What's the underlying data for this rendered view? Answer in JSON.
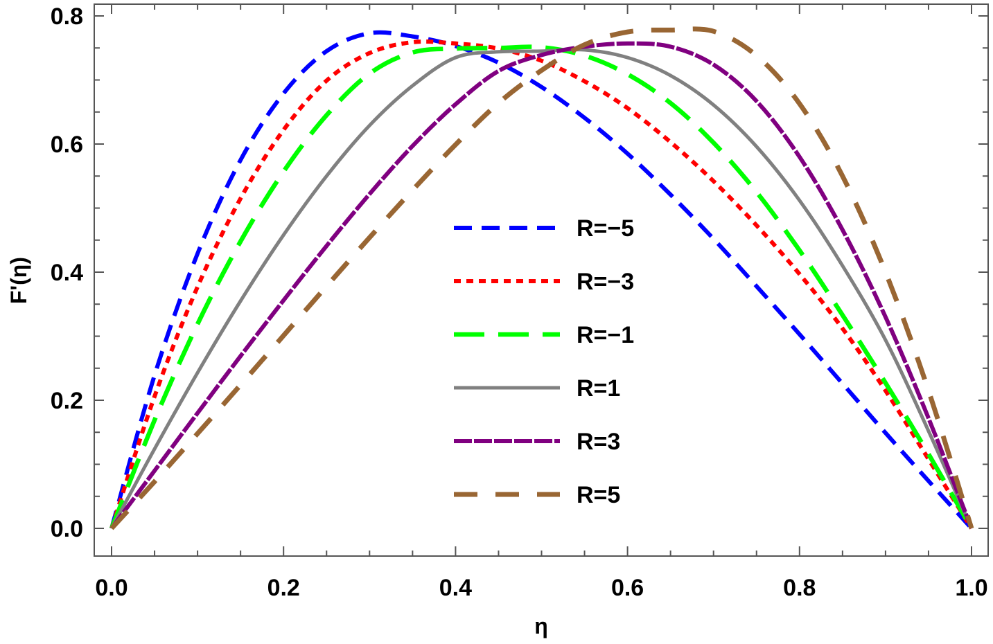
{
  "chart_data": {
    "type": "line",
    "title": "",
    "xlabel": "η",
    "ylabel": "F'(η)",
    "xlim": [
      0.0,
      1.0
    ],
    "ylim": [
      0.0,
      0.8
    ],
    "x_ticks": [
      "0.0",
      "0.2",
      "0.4",
      "0.6",
      "0.8",
      "1.0"
    ],
    "y_ticks": [
      "0.0",
      "0.2",
      "0.4",
      "0.6",
      "0.8"
    ],
    "grid": false,
    "legend_position": "center",
    "x": [
      0.0,
      0.05,
      0.1,
      0.15,
      0.2,
      0.25,
      0.3,
      0.35,
      0.4,
      0.45,
      0.5,
      0.55,
      0.6,
      0.65,
      0.7,
      0.75,
      0.8,
      0.85,
      0.9,
      0.95,
      1.0
    ],
    "series": [
      {
        "name": "R=−5",
        "color": "#0000ff",
        "style": "dashed",
        "values": [
          0.0,
          0.239,
          0.429,
          0.575,
          0.679,
          0.745,
          0.773,
          0.768,
          0.753,
          0.727,
          0.689,
          0.641,
          0.585,
          0.521,
          0.452,
          0.378,
          0.303,
          0.226,
          0.149,
          0.074,
          0.0
        ]
      },
      {
        "name": "R=−3",
        "color": "#ff0000",
        "style": "dotted",
        "values": [
          0.0,
          0.206,
          0.377,
          0.515,
          0.622,
          0.699,
          0.742,
          0.759,
          0.757,
          0.749,
          0.73,
          0.698,
          0.656,
          0.603,
          0.542,
          0.473,
          0.397,
          0.312,
          0.215,
          0.108,
          0.0
        ]
      },
      {
        "name": "R=−1",
        "color": "#00ff00",
        "style": "longdash",
        "values": [
          0.0,
          0.169,
          0.319,
          0.448,
          0.557,
          0.645,
          0.71,
          0.743,
          0.749,
          0.75,
          0.751,
          0.738,
          0.709,
          0.664,
          0.602,
          0.525,
          0.434,
          0.333,
          0.227,
          0.116,
          0.0
        ]
      },
      {
        "name": "R=1",
        "color": "#808080",
        "style": "solid",
        "values": [
          0.0,
          0.124,
          0.243,
          0.355,
          0.458,
          0.55,
          0.629,
          0.691,
          0.735,
          0.744,
          0.745,
          0.747,
          0.735,
          0.707,
          0.661,
          0.596,
          0.512,
          0.41,
          0.294,
          0.152,
          0.0
        ]
      },
      {
        "name": "R=3",
        "color": "#800080",
        "style": "dashdot",
        "values": [
          0.0,
          0.09,
          0.18,
          0.269,
          0.356,
          0.441,
          0.522,
          0.597,
          0.662,
          0.714,
          0.739,
          0.752,
          0.757,
          0.752,
          0.724,
          0.667,
          0.58,
          0.466,
          0.33,
          0.172,
          0.0
        ]
      },
      {
        "name": "R=5",
        "color": "#996633",
        "style": "widedash",
        "values": [
          0.0,
          0.073,
          0.148,
          0.224,
          0.301,
          0.378,
          0.454,
          0.528,
          0.599,
          0.664,
          0.715,
          0.755,
          0.775,
          0.778,
          0.776,
          0.738,
          0.663,
          0.55,
          0.4,
          0.215,
          0.0
        ]
      }
    ]
  }
}
